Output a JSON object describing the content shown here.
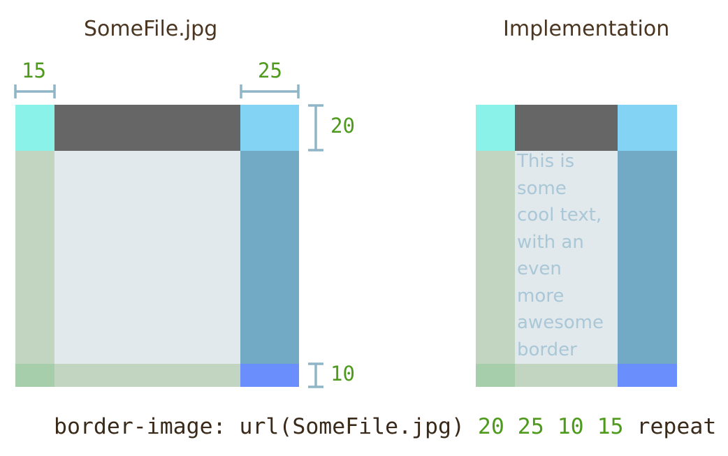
{
  "titles": {
    "left": "SomeFile.jpg",
    "right": "Implementation"
  },
  "slice_values": {
    "top": "20",
    "right": "25",
    "bottom": "10",
    "left": "15"
  },
  "inner_text": "This is\nsome\ncool text,\nwith an\neven\nmore\nawesome\nborder",
  "code": {
    "prefix": "border-image: url(SomeFile.jpg) ",
    "top": "20",
    "right": "25",
    "bottom": "10",
    "left": "15",
    "suffix": " repeat"
  },
  "colors": {
    "title_text": "#4a3520",
    "number_text": "#4e9a1c",
    "measure_line": "#8fb5c7",
    "top_left_corner": "#8af2e8",
    "top_edge": "#666666",
    "top_right_corner": "#82d3f4",
    "left_edge": "#c1d5c0",
    "center": "#e1e9ed",
    "right_edge": "#72aac6",
    "bottom_left_corner": "#a6ceaa",
    "bottom_edge": "#c1d5c0",
    "bottom_right_corner": "#6a8efc",
    "inner_text": "#a9c7d6"
  }
}
